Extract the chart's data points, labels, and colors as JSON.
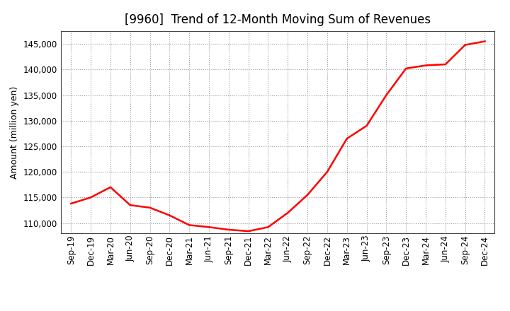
{
  "title": "[9960]  Trend of 12-Month Moving Sum of Revenues",
  "ylabel": "Amount (million yen)",
  "xlabel": "",
  "line_color": "#ff0000",
  "line_width": 1.8,
  "background_color": "#ffffff",
  "plot_bg_color": "#ffffff",
  "grid_color": "#999999",
  "ylim": [
    108000,
    147500
  ],
  "yticks": [
    110000,
    115000,
    120000,
    125000,
    130000,
    135000,
    140000,
    145000
  ],
  "x_labels": [
    "Sep-19",
    "Dec-19",
    "Mar-20",
    "Jun-20",
    "Sep-20",
    "Dec-20",
    "Mar-21",
    "Jun-21",
    "Sep-21",
    "Dec-21",
    "Mar-22",
    "Jun-22",
    "Sep-22",
    "Dec-22",
    "Mar-23",
    "Jun-23",
    "Sep-23",
    "Dec-23",
    "Mar-24",
    "Jun-24",
    "Sep-24",
    "Dec-24"
  ],
  "values": [
    113800,
    115000,
    117000,
    113500,
    113000,
    111500,
    109600,
    109200,
    108700,
    108400,
    109200,
    112000,
    115500,
    120000,
    126500,
    129000,
    135000,
    140200,
    140800,
    141000,
    144800,
    145500
  ],
  "title_fontsize": 12,
  "tick_fontsize": 8.5,
  "ylabel_fontsize": 9
}
